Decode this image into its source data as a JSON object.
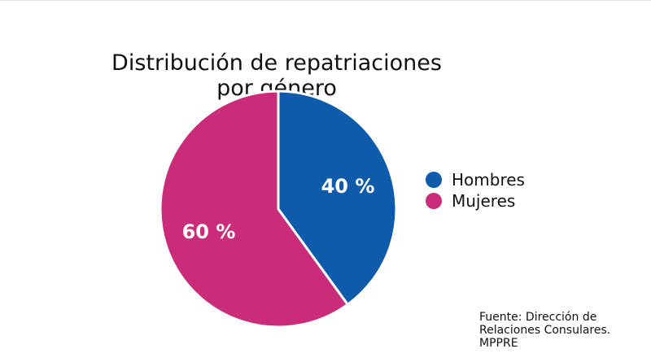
{
  "chart_data": {
    "type": "pie",
    "title": [
      "Distribución de repatriaciones",
      "por género"
    ],
    "categories": [
      "Hombres",
      "Mujeres"
    ],
    "values": [
      40,
      60
    ],
    "data_labels": [
      "40 %",
      "60 %"
    ],
    "colors": [
      "#0E5AAB",
      "#CB2C7A"
    ],
    "legend_position": "right"
  },
  "source_note": [
    "Fuente: Dirección de",
    "Relaciones Consulares.",
    "MPPRE"
  ]
}
